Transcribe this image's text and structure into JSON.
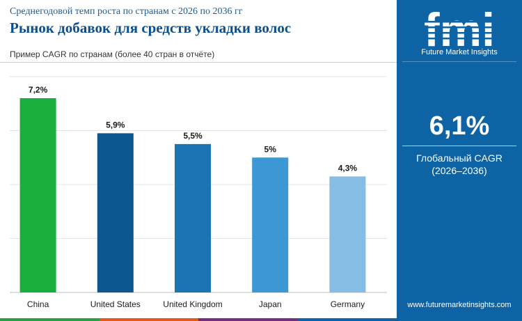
{
  "header": {
    "subtitle": "Среднегодовой темп роста по странам с 2026 по 2036 гг",
    "title": "Рынок добавок для средств укладки волос",
    "caption": "Пример CAGR по странам (более 40 стран в отчёте)"
  },
  "sidebar": {
    "logo_text": "fmi",
    "logo_tagline": "Future Market Insights",
    "global_cagr": "6,1%",
    "global_cagr_label": "Глобальный CAGR",
    "global_cagr_period": "(2026–2036)",
    "website": "www.futuremarketinsights.com"
  },
  "colors": {
    "sidebar_bg": "#0e63a4",
    "title": "#0b4f8f",
    "stripe": [
      "#2f9e3a",
      "#e05a1c",
      "#7a2a86",
      "#0e63a4"
    ]
  },
  "chart_data": {
    "type": "bar",
    "categories": [
      "China",
      "United States",
      "United Kingdom",
      "Japan",
      "Germany"
    ],
    "values": [
      7.2,
      5.9,
      5.5,
      5.0,
      4.3
    ],
    "data_labels": [
      "7,2%",
      "5,9%",
      "5,5%",
      "5%",
      "4,3%"
    ],
    "colors": [
      "#1aaf3c",
      "#0d5791",
      "#1c74b4",
      "#3c97d5",
      "#86bde4"
    ],
    "ylim": [
      0,
      8
    ],
    "y_gridlines": [
      0,
      2,
      4,
      6,
      8
    ],
    "y_tick_labels_shown": false,
    "title": "",
    "xlabel": "",
    "ylabel": "",
    "grid": true,
    "legend": "none"
  }
}
